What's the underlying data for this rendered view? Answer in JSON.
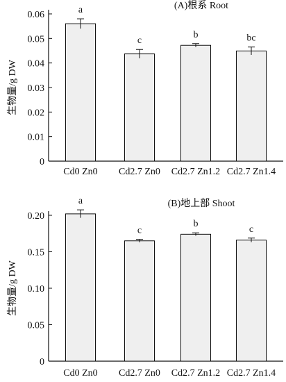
{
  "chart_data": [
    {
      "type": "bar",
      "title": "(A)根系 Root",
      "ylabel": "生物量/g DW",
      "xlabel": "",
      "categories": [
        "Cd0 Zn0",
        "Cd2.7 Zn0",
        "Cd2.7 Zn1.2",
        "Cd2.7 Zn1.4"
      ],
      "values": [
        0.056,
        0.0437,
        0.0472,
        0.0449
      ],
      "errors": [
        0.002,
        0.0018,
        0.0007,
        0.0016
      ],
      "significance": [
        "a",
        "c",
        "b",
        "bc"
      ],
      "ylim": [
        0,
        0.06
      ],
      "yticks": [
        "0",
        "0.01",
        "0.02",
        "0.03",
        "0.04",
        "0.05",
        "0.06"
      ],
      "ytick_values": [
        0,
        0.01,
        0.02,
        0.03,
        0.04,
        0.05,
        0.06
      ],
      "grid": false,
      "legend": "none"
    },
    {
      "type": "bar",
      "title": "(B)地上部 Shoot",
      "ylabel": "生物量/g DW",
      "xlabel": "",
      "categories": [
        "Cd0 Zn0",
        "Cd2.7 Zn0",
        "Cd2.7 Zn1.2",
        "Cd2.7 Zn1.4"
      ],
      "values": [
        0.202,
        0.165,
        0.174,
        0.166
      ],
      "errors": [
        0.0055,
        0.002,
        0.002,
        0.0028
      ],
      "significance": [
        "a",
        "c",
        "b",
        "c"
      ],
      "ylim": [
        0,
        0.2
      ],
      "yticks": [
        "0",
        "0.05",
        "0.10",
        "0.15",
        "0.20"
      ],
      "ytick_values": [
        0,
        0.05,
        0.1,
        0.15,
        0.2
      ],
      "grid": false,
      "legend": "none"
    }
  ]
}
